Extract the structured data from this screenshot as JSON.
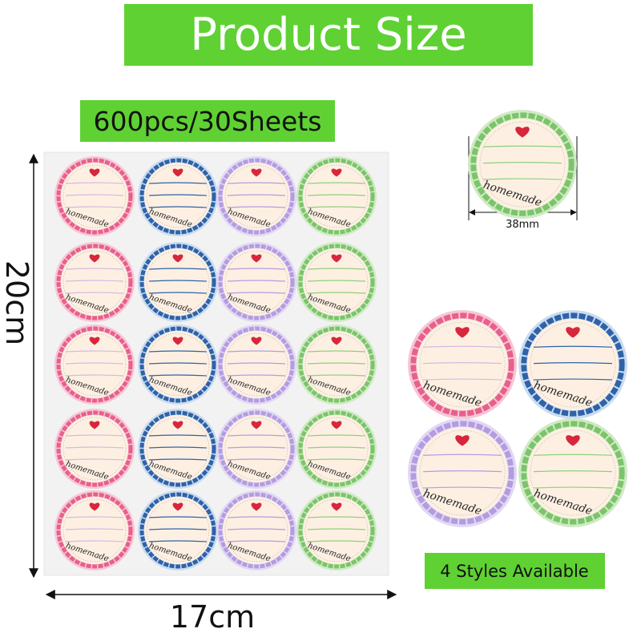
{
  "header": {
    "title": "Product Size"
  },
  "badge": "600pcs/30Sheets",
  "dimensions": {
    "height": "20cm",
    "width": "17cm",
    "diameter": "38mm"
  },
  "footer": "4 Styles Available",
  "sticker_text": "homemade"
}
